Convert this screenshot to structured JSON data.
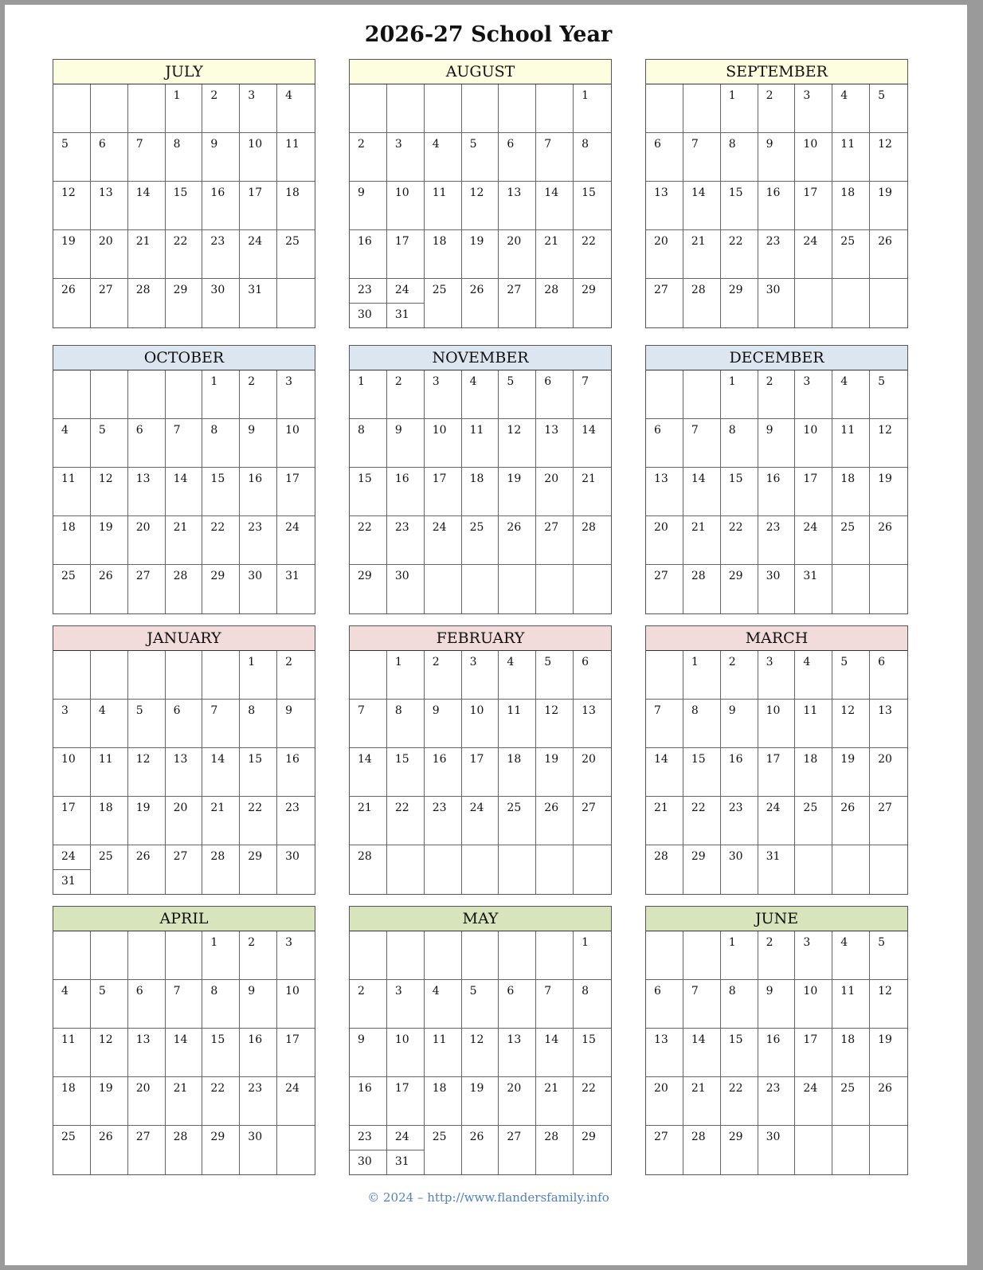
{
  "title": "2026-27 School Year",
  "footer": "© 2024 – http://www.flandersfamily.info",
  "colors": {
    "summer": "#fdfde0",
    "fall": "#dce6f1",
    "winter": "#f2dcdb",
    "spring": "#d7e4bc"
  },
  "months": [
    {
      "name": "JULY",
      "first_weekday": 3,
      "days": 31,
      "color": "#fdfde0"
    },
    {
      "name": "AUGUST",
      "first_weekday": 6,
      "days": 31,
      "color": "#fdfde0"
    },
    {
      "name": "SEPTEMBER",
      "first_weekday": 2,
      "days": 30,
      "color": "#fdfde0"
    },
    {
      "name": "OCTOBER",
      "first_weekday": 4,
      "days": 31,
      "color": "#dce6f1"
    },
    {
      "name": "NOVEMBER",
      "first_weekday": 0,
      "days": 30,
      "color": "#dce6f1"
    },
    {
      "name": "DECEMBER",
      "first_weekday": 2,
      "days": 31,
      "color": "#dce6f1"
    },
    {
      "name": "JANUARY",
      "first_weekday": 5,
      "days": 31,
      "color": "#f2dcdb"
    },
    {
      "name": "FEBRUARY",
      "first_weekday": 1,
      "days": 28,
      "color": "#f2dcdb"
    },
    {
      "name": "MARCH",
      "first_weekday": 1,
      "days": 31,
      "color": "#f2dcdb"
    },
    {
      "name": "APRIL",
      "first_weekday": 4,
      "days": 30,
      "color": "#d7e4bc"
    },
    {
      "name": "MAY",
      "first_weekday": 6,
      "days": 31,
      "color": "#d7e4bc"
    },
    {
      "name": "JUNE",
      "first_weekday": 2,
      "days": 30,
      "color": "#d7e4bc"
    }
  ]
}
